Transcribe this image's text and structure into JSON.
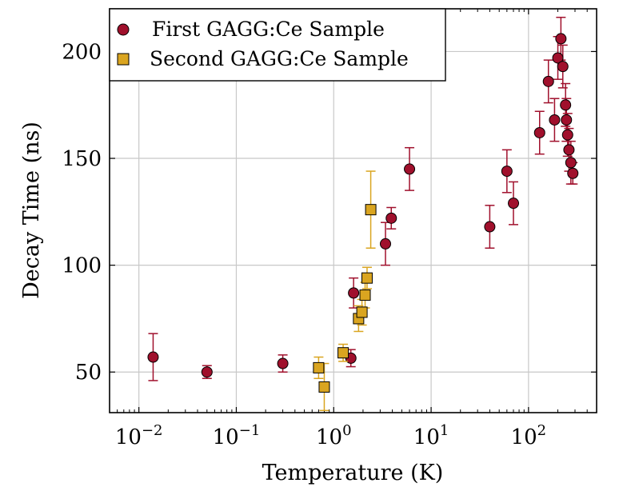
{
  "chart_data": {
    "type": "scatter",
    "title": "",
    "xlabel": "Temperature (K)",
    "ylabel": "Decay Time (ns)",
    "xscale": "log",
    "xlim": [
      0.005,
      500
    ],
    "ylim": [
      31,
      220
    ],
    "xticks": [
      {
        "value": 0.01,
        "base": "10",
        "exp": "−2"
      },
      {
        "value": 0.1,
        "base": "10",
        "exp": "−1"
      },
      {
        "value": 1,
        "base": "10",
        "exp": "0"
      },
      {
        "value": 10,
        "base": "10",
        "exp": "1"
      },
      {
        "value": 100,
        "base": "10",
        "exp": "2"
      }
    ],
    "yticks": [
      "50",
      "100",
      "150",
      "200"
    ],
    "grid": true,
    "legend_position": "top-left",
    "series": [
      {
        "name": "First GAGG:Ce Sample",
        "marker": "circle",
        "color": "#a0102c",
        "points": [
          {
            "x": 0.014,
            "y": 57,
            "err": 11
          },
          {
            "x": 0.05,
            "y": 50,
            "err": 3
          },
          {
            "x": 0.3,
            "y": 54,
            "err": 4
          },
          {
            "x": 1.5,
            "y": 56.5,
            "err": 4
          },
          {
            "x": 1.6,
            "y": 87,
            "err": 7
          },
          {
            "x": 3.4,
            "y": 110,
            "err": 10
          },
          {
            "x": 3.9,
            "y": 122,
            "err": 5
          },
          {
            "x": 6,
            "y": 145,
            "err": 10
          },
          {
            "x": 40,
            "y": 118,
            "err": 10
          },
          {
            "x": 60,
            "y": 144,
            "err": 10
          },
          {
            "x": 70,
            "y": 129,
            "err": 10
          },
          {
            "x": 130,
            "y": 162,
            "err": 10
          },
          {
            "x": 160,
            "y": 186,
            "err": 10
          },
          {
            "x": 185,
            "y": 168,
            "err": 10
          },
          {
            "x": 200,
            "y": 197,
            "err": 10
          },
          {
            "x": 215,
            "y": 206,
            "err": 10
          },
          {
            "x": 225,
            "y": 193,
            "err": 10
          },
          {
            "x": 240,
            "y": 175,
            "err": 10
          },
          {
            "x": 245,
            "y": 168,
            "err": 10
          },
          {
            "x": 252,
            "y": 161,
            "err": 10
          },
          {
            "x": 260,
            "y": 154,
            "err": 10
          },
          {
            "x": 272,
            "y": 148,
            "err": 10
          },
          {
            "x": 285,
            "y": 143,
            "err": 5
          }
        ]
      },
      {
        "name": "Second GAGG:Ce Sample",
        "marker": "square",
        "color": "#daa520",
        "points": [
          {
            "x": 0.7,
            "y": 52,
            "err": 5
          },
          {
            "x": 0.8,
            "y": 43,
            "err": 11
          },
          {
            "x": 1.25,
            "y": 59,
            "err": 4
          },
          {
            "x": 1.8,
            "y": 75,
            "err": 6
          },
          {
            "x": 1.95,
            "y": 78,
            "err": 6
          },
          {
            "x": 2.1,
            "y": 86,
            "err": 6
          },
          {
            "x": 2.2,
            "y": 94,
            "err": 5
          },
          {
            "x": 2.4,
            "y": 126,
            "err": 18
          }
        ]
      }
    ]
  }
}
